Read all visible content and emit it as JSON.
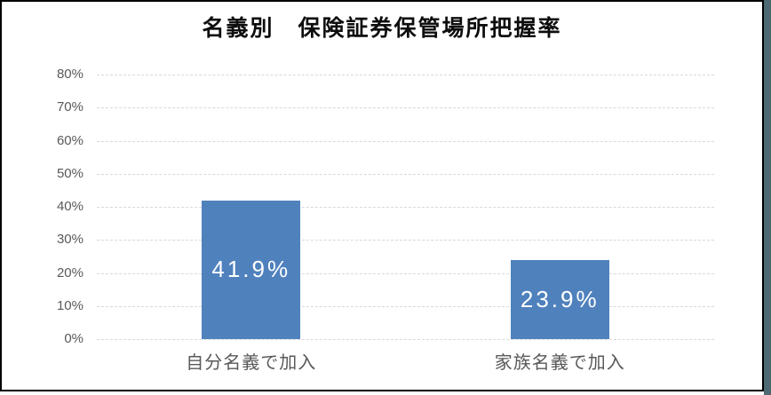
{
  "frame": {
    "background_color": "#ffffff",
    "border_color": "#000000",
    "backdrop_strip_color": "#4d6a72"
  },
  "chart_data": {
    "type": "bar",
    "title": "名義別　保険証券保管場所把握率",
    "categories": [
      "自分名義で加入",
      "家族名義で加入"
    ],
    "values": [
      41.9,
      23.9
    ],
    "value_labels": [
      "41.9%",
      "23.9%"
    ],
    "ylim": [
      0,
      80
    ],
    "ytick_step": 10,
    "ytick_labels": [
      "80%",
      "70%",
      "60%",
      "50%",
      "40%",
      "30%",
      "20%",
      "10%",
      "0%"
    ],
    "grid": true,
    "legend": "none",
    "xlabel": "",
    "ylabel": "",
    "bar_color": "#4f81bd",
    "bar_label_color": "#ffffff",
    "axis_text_color": "#595959",
    "gridline_color": "#d9d9d9"
  }
}
